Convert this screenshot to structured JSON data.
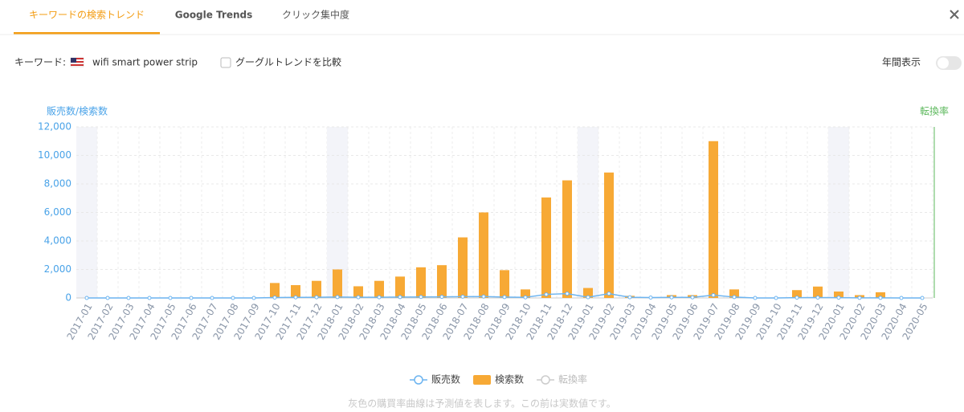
{
  "tabs": [
    "キーワードの検索トレンド",
    "Google Trends",
    "クリック集中度"
  ],
  "keyword_label": "キーワード:",
  "keyword": "wifi smart power strip",
  "compare_label": "グーグルトレンドを比較",
  "annual_label": "年間表示",
  "footnote": "灰色の購買率曲線は予測値を表します。この前は実数値です。",
  "chart_data": {
    "type": "bar",
    "y_axis_label": "販売数/検索数",
    "y2_axis_label": "転換率",
    "categories": [
      "2017-01",
      "2017-02",
      "2017-03",
      "2017-04",
      "2017-05",
      "2017-06",
      "2017-07",
      "2017-08",
      "2017-09",
      "2017-10",
      "2017-11",
      "2017-12",
      "2018-01",
      "2018-02",
      "2018-03",
      "2018-04",
      "2018-05",
      "2018-06",
      "2018-07",
      "2018-08",
      "2018-09",
      "2018-10",
      "2018-11",
      "2018-12",
      "2019-01",
      "2019-02",
      "2019-03",
      "2019-04",
      "2019-05",
      "2019-06",
      "2019-07",
      "2019-08",
      "2019-09",
      "2019-10",
      "2019-11",
      "2019-12",
      "2020-01",
      "2020-02",
      "2020-03",
      "2020-04",
      "2020-05"
    ],
    "series": [
      {
        "name": "販売数",
        "type": "line",
        "color": "#6cb4f0",
        "values": [
          0,
          0,
          0,
          0,
          0,
          0,
          0,
          0,
          0,
          30,
          40,
          50,
          60,
          50,
          50,
          60,
          70,
          80,
          90,
          100,
          60,
          40,
          250,
          300,
          50,
          300,
          50,
          30,
          40,
          40,
          200,
          60,
          0,
          0,
          20,
          30,
          20,
          10,
          10,
          0,
          0
        ]
      },
      {
        "name": "検索数",
        "type": "bar",
        "color": "#f7a935",
        "values": [
          0,
          0,
          0,
          0,
          0,
          0,
          0,
          0,
          0,
          1050,
          900,
          1200,
          2000,
          820,
          1200,
          1500,
          2150,
          2300,
          4250,
          6000,
          1950,
          600,
          7050,
          8250,
          700,
          8800,
          150,
          50,
          200,
          200,
          11000,
          600,
          0,
          0,
          550,
          800,
          450,
          200,
          400,
          0,
          0
        ]
      },
      {
        "name": "転換率",
        "type": "line",
        "axis": "y2",
        "color": "#cccccc"
      }
    ],
    "ylim": [
      0,
      12000
    ],
    "yticks": [
      0,
      {
        "value": 2000,
        "label": "2,000"
      },
      {
        "value": 4000,
        "label": "4,000"
      },
      {
        "value": 6000,
        "label": "6,000"
      },
      {
        "value": 8000,
        "label": "8,000"
      },
      {
        "value": 10000,
        "label": "10,000"
      },
      {
        "value": 12000,
        "label": "12,000"
      }
    ],
    "grid": true
  }
}
